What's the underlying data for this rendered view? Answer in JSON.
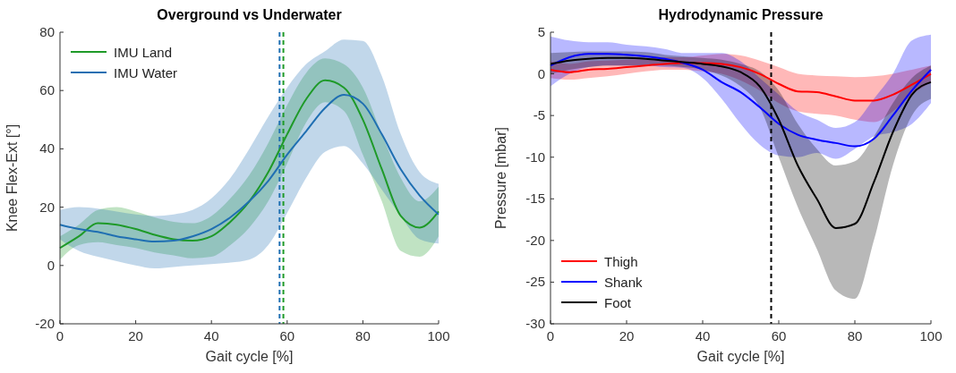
{
  "chart_data": [
    {
      "type": "line",
      "title": "Overground vs Underwater",
      "xlabel": "Gait cycle [%]",
      "ylabel": "Knee Flex-Ext [°]",
      "x": [
        0,
        5,
        10,
        15,
        20,
        25,
        30,
        35,
        40,
        45,
        50,
        55,
        60,
        65,
        70,
        75,
        80,
        85,
        90,
        95,
        100
      ],
      "xlim": [
        0,
        100
      ],
      "xticks": [
        0,
        20,
        40,
        60,
        80,
        100
      ],
      "ylim": [
        -20,
        80
      ],
      "yticks": [
        -20,
        0,
        20,
        40,
        60,
        80
      ],
      "legend": "top left",
      "grid": false,
      "series": [
        {
          "name": "IMU Land",
          "color": "#1e9a28",
          "values": [
            6,
            10,
            14.5,
            14,
            12.5,
            10.5,
            9,
            8.5,
            10,
            15,
            22,
            32,
            45,
            57,
            63.5,
            61,
            50,
            33,
            17,
            13,
            18.5
          ],
          "lower": [
            2,
            7,
            8,
            7,
            6,
            4.5,
            3.5,
            2.5,
            3,
            7,
            13,
            22,
            35,
            49,
            56,
            53,
            38,
            22,
            5,
            3,
            10
          ],
          "upper": [
            10,
            14,
            19,
            20,
            18.5,
            16.5,
            15,
            14.5,
            17,
            23,
            31,
            42,
            55,
            66,
            71,
            69,
            61,
            45,
            30,
            22,
            27
          ]
        },
        {
          "name": "IMU Water",
          "color": "#1f6fb2",
          "values": [
            14,
            12.5,
            11.5,
            10,
            9,
            8.2,
            8.5,
            10,
            12.5,
            16.5,
            22,
            29,
            38,
            46,
            54,
            58.5,
            55.5,
            45,
            33,
            24,
            17.5
          ],
          "lower": [
            9,
            5,
            3,
            1.5,
            0,
            -1,
            -0.5,
            0,
            0.5,
            1,
            2,
            7,
            18,
            30,
            39,
            41,
            35,
            26,
            17,
            9,
            7.5
          ],
          "upper": [
            19,
            20,
            19.5,
            18.5,
            17.5,
            17,
            17.5,
            19,
            23,
            30,
            40,
            51,
            61,
            69,
            73.5,
            77.5,
            77,
            65,
            45,
            32,
            28
          ]
        }
      ],
      "ref_lines": [
        {
          "axis": "x",
          "value": 58,
          "color": "#1f6fb2",
          "line_style": "dashed"
        },
        {
          "axis": "x",
          "value": 59,
          "color": "#1e9a28",
          "line_style": "dashed"
        }
      ]
    },
    {
      "type": "line",
      "title": "Hydrodynamic Pressure",
      "xlabel": "Gait cycle [%]",
      "ylabel": "Pressure [mbar]",
      "x": [
        0,
        5,
        10,
        15,
        20,
        25,
        30,
        35,
        40,
        45,
        50,
        55,
        60,
        65,
        70,
        75,
        80,
        85,
        90,
        95,
        100
      ],
      "xlim": [
        0,
        100
      ],
      "xticks": [
        0,
        20,
        40,
        60,
        80,
        100
      ],
      "ylim": [
        -30,
        5
      ],
      "yticks": [
        -30,
        -25,
        -20,
        -15,
        -10,
        -5,
        0,
        5
      ],
      "legend": "bottom left",
      "grid": false,
      "series": [
        {
          "name": "Thigh",
          "color": "#ff0000",
          "values": [
            0.5,
            0.2,
            0.5,
            0.6,
            0.8,
            1,
            1.2,
            1.3,
            1.3,
            1.2,
            0.8,
            0,
            -1.2,
            -2.1,
            -2.2,
            -2.7,
            -3.2,
            -3.2,
            -2.5,
            -1.3,
            0
          ],
          "lower": [
            -0.5,
            -0.7,
            -0.5,
            -0.3,
            0,
            0.3,
            0.5,
            0.5,
            0.3,
            0,
            -0.8,
            -2,
            -3.5,
            -4.5,
            -4.8,
            -5,
            -5.5,
            -5.8,
            -4.5,
            -2.5,
            -1
          ],
          "upper": [
            1.5,
            1.2,
            1.5,
            1.6,
            1.7,
            1.8,
            2,
            2,
            2.2,
            2.4,
            2.2,
            1.6,
            0.8,
            0,
            -0.2,
            -0.3,
            -0.4,
            -0.3,
            0,
            0.5,
            1
          ]
        },
        {
          "name": "Shank",
          "color": "#0000ff",
          "values": [
            1,
            2,
            2.4,
            2.4,
            2.3,
            2.1,
            1.8,
            1.3,
            0.5,
            -1,
            -2.2,
            -4,
            -6,
            -7.3,
            -7.9,
            -8.3,
            -8.7,
            -7.8,
            -5,
            -2,
            0.5
          ],
          "lower": [
            -1.5,
            0,
            0.8,
            1,
            1,
            1,
            0.8,
            0.7,
            -0.5,
            -3,
            -6,
            -8.5,
            -9.8,
            -10,
            -9.5,
            -10.2,
            -9,
            -7.5,
            -7,
            -6,
            -3.5
          ],
          "upper": [
            4.5,
            4,
            3.8,
            3.8,
            3.5,
            3.3,
            3,
            2.5,
            2.5,
            2.5,
            1.5,
            -0.5,
            -2.5,
            -4.5,
            -5.5,
            -6.5,
            -5.8,
            -3,
            0,
            4,
            4.7
          ]
        },
        {
          "name": "Foot",
          "color": "#000000",
          "values": [
            1.2,
            1.6,
            1.8,
            1.9,
            1.9,
            1.8,
            1.6,
            1.4,
            1.2,
            0.9,
            0.2,
            -1.5,
            -5.5,
            -11,
            -15,
            -18.5,
            -18,
            -13,
            -7,
            -2.5,
            -1
          ],
          "lower": [
            0,
            0.5,
            0.8,
            1,
            1,
            1,
            1,
            0.8,
            0.5,
            -0.2,
            -1.5,
            -4,
            -10,
            -16,
            -21,
            -26,
            -27,
            -20,
            -11,
            -5,
            -3
          ],
          "upper": [
            2.5,
            2.6,
            2.7,
            2.7,
            2.7,
            2.6,
            2.3,
            2.1,
            1.9,
            1.7,
            1.2,
            0.3,
            -2,
            -6,
            -9,
            -11,
            -10.5,
            -7.5,
            -3.5,
            -0.5,
            1
          ]
        }
      ],
      "ref_lines": [
        {
          "axis": "x",
          "value": 58,
          "color": "#000000",
          "line_style": "dashed"
        }
      ]
    }
  ]
}
